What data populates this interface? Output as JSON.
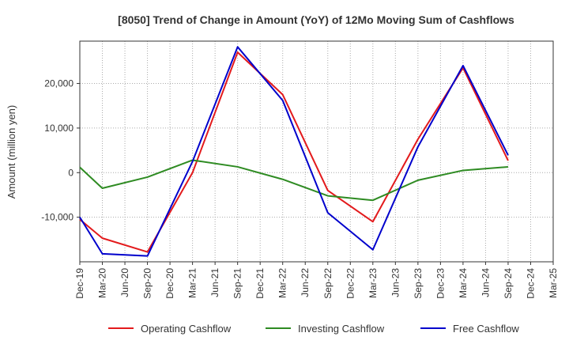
{
  "chart_data": {
    "type": "line",
    "title": "[8050]  Trend of Change in Amount (YoY) of 12Mo Moving Sum of Cashflows",
    "xlabel": "",
    "ylabel": "Amount (million yen)",
    "categories": [
      "Dec-19",
      "Mar-20",
      "Jun-20",
      "Sep-20",
      "Dec-20",
      "Mar-21",
      "Jun-21",
      "Sep-21",
      "Dec-21",
      "Mar-22",
      "Jun-22",
      "Sep-22",
      "Dec-22",
      "Mar-23",
      "Jun-23",
      "Sep-23",
      "Dec-23",
      "Mar-24",
      "Jun-24",
      "Sep-24",
      "Dec-24",
      "Mar-25"
    ],
    "ylim": [
      -20000,
      29500
    ],
    "yticks": [
      -10000,
      0,
      10000,
      20000
    ],
    "ytick_labels": [
      "-10,000",
      "0",
      "10,000",
      "20,000"
    ],
    "grid": true,
    "legend_position": "bottom",
    "series": [
      {
        "name": "Operating Cashflow",
        "color": "#e31a1c",
        "x": [
          "Dec-19",
          "Mar-20",
          "Sep-20",
          "Mar-21",
          "Sep-21",
          "Mar-22",
          "Sep-22",
          "Mar-23",
          "Sep-23",
          "Mar-24",
          "Sep-24"
        ],
        "values": [
          -10500,
          -14700,
          -17800,
          0,
          27000,
          17500,
          -4000,
          -11000,
          7500,
          23500,
          2700
        ]
      },
      {
        "name": "Investing Cashflow",
        "color": "#2e8b22",
        "x": [
          "Dec-19",
          "Mar-20",
          "Sep-20",
          "Mar-21",
          "Sep-21",
          "Mar-22",
          "Sep-22",
          "Mar-23",
          "Sep-23",
          "Mar-24",
          "Sep-24"
        ],
        "values": [
          1200,
          -3500,
          -1000,
          2800,
          1300,
          -1500,
          -5200,
          -6200,
          -1700,
          500,
          1300
        ]
      },
      {
        "name": "Free Cashflow",
        "color": "#0000cc",
        "x": [
          "Dec-19",
          "Mar-20",
          "Sep-20",
          "Mar-21",
          "Sep-21",
          "Mar-22",
          "Sep-22",
          "Mar-23",
          "Sep-23",
          "Mar-24",
          "Sep-24"
        ],
        "values": [
          -10000,
          -18200,
          -18700,
          2500,
          28200,
          16200,
          -9000,
          -17300,
          5800,
          24000,
          3900
        ]
      }
    ]
  }
}
